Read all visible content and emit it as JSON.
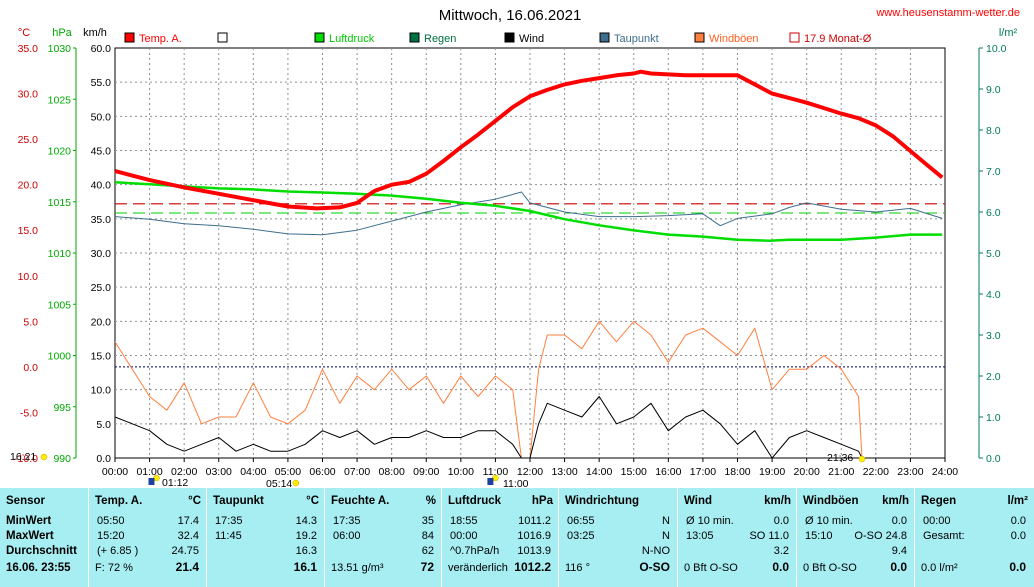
{
  "header": {
    "title": "Mittwoch, 16.06.2021",
    "site": "www.heusenstamm-wetter.de"
  },
  "colors": {
    "temp": "#ff0000",
    "pressure": "#00cc00",
    "rain": "#007040",
    "wind": "#000000",
    "dewpoint": "#3d6e8e",
    "gust": "#ff8040",
    "month_avg": "#cc0000",
    "axis_left": "#cc0000",
    "axis_press": "#00aa00",
    "axis_rain": "#007b5a",
    "table_bg": "#a6eef2"
  },
  "axes": {
    "temp_unit": "°C",
    "press_unit": "hPa",
    "wind_unit": "km/h",
    "rain_unit": "l/m²",
    "temp_ticks": [
      "35.0",
      "30.0",
      "25.0",
      "20.0",
      "15.0",
      "10.0",
      "5.0",
      "0.0",
      "-5.0",
      "-10.0"
    ],
    "press_ticks": [
      "1030",
      "1025",
      "1020",
      "1015",
      "1010",
      "1005",
      "1000",
      "995",
      "990"
    ],
    "wind_ticks": [
      "60.0",
      "55.0",
      "50.0",
      "45.0",
      "40.0",
      "35.0",
      "30.0",
      "25.0",
      "20.0",
      "15.0",
      "10.0",
      "5.0",
      "0.0"
    ],
    "rain_ticks": [
      "10.0",
      "9.0",
      "8.0",
      "7.0",
      "6.0",
      "5.0",
      "4.0",
      "3.0",
      "2.0",
      "1.0",
      "0.0"
    ],
    "time_ticks": [
      "00:00",
      "01:00",
      "02:00",
      "03:00",
      "04:00",
      "05:00",
      "06:00",
      "07:00",
      "08:00",
      "09:00",
      "10:00",
      "11:00",
      "12:00",
      "13:00",
      "14:00",
      "15:00",
      "16:00",
      "17:00",
      "18:00",
      "19:00",
      "20:00",
      "21:00",
      "22:00",
      "23:00",
      "24:00"
    ]
  },
  "legend": [
    {
      "label": "Temp. A.",
      "color": "#ff0000",
      "fill": true
    },
    {
      "label": "",
      "color": "#ffffff",
      "fill": true
    },
    {
      "label": "Luftdruck",
      "color": "#00dd00",
      "fill": true
    },
    {
      "label": "Regen",
      "color": "#007040",
      "fill": true
    },
    {
      "label": "Wind",
      "color": "#000000",
      "fill": true
    },
    {
      "label": "Taupunkt",
      "color": "#3d6e8e",
      "fill": true
    },
    {
      "label": "Windböen",
      "color": "#ff8040",
      "fill": true
    },
    {
      "label": "17.9 Monat-Ø",
      "color": "#cc0000",
      "fill": false
    }
  ],
  "events": {
    "sunrise": "05:14",
    "sunset": "21:36",
    "moonrise": "01:12",
    "moonset": "11:00",
    "prev_day": "16:21"
  },
  "chart_data": {
    "type": "line",
    "x_range": [
      "00:00",
      "24:00"
    ],
    "month_avg_temp": 17.9,
    "series": [
      {
        "name": "Temp. A.",
        "unit": "°C",
        "x_hours": [
          0,
          1,
          2,
          3,
          4,
          5,
          5.83,
          6.5,
          7,
          7.5,
          8,
          8.5,
          9,
          9.5,
          10,
          10.5,
          11,
          11.5,
          12,
          12.5,
          13,
          13.5,
          14,
          14.5,
          15,
          15.2,
          15.5,
          16,
          16.5,
          17,
          17.5,
          18,
          18.5,
          19,
          19.5,
          20,
          20.5,
          21,
          21.5,
          22,
          22.5,
          23,
          23.5,
          23.92
        ],
        "y": [
          21.5,
          20.5,
          19.7,
          19.0,
          18.3,
          17.6,
          17.4,
          17.5,
          18.0,
          19.3,
          20.0,
          20.3,
          21.2,
          22.6,
          24.1,
          25.5,
          27.0,
          28.5,
          29.7,
          30.4,
          31.0,
          31.4,
          31.7,
          32.0,
          32.2,
          32.4,
          32.2,
          32.1,
          32.0,
          32.0,
          32.0,
          32.0,
          31.0,
          30.0,
          29.5,
          29.0,
          28.4,
          27.8,
          27.3,
          26.5,
          25.3,
          23.7,
          22.1,
          20.8
        ]
      },
      {
        "name": "Luftdruck",
        "unit": "hPa",
        "x_hours": [
          0,
          1,
          2,
          3,
          4,
          5,
          6,
          6.92,
          8,
          9,
          10,
          11,
          12,
          13,
          14,
          15,
          16,
          17,
          18,
          18.92,
          19.5,
          20,
          21,
          22,
          23,
          23.92
        ],
        "y": [
          1016.9,
          1016.7,
          1016.5,
          1016.3,
          1016.2,
          1016.0,
          1015.9,
          1015.8,
          1015.6,
          1015.3,
          1014.9,
          1014.6,
          1014.1,
          1013.3,
          1012.7,
          1012.2,
          1011.8,
          1011.6,
          1011.3,
          1011.2,
          1011.3,
          1011.3,
          1011.3,
          1011.5,
          1011.8,
          1011.8
        ]
      },
      {
        "name": "Taupunkt",
        "unit": "°C",
        "x_hours": [
          0,
          1,
          2,
          3,
          4,
          5,
          6,
          7,
          8,
          9,
          10,
          11,
          11.75,
          12,
          13,
          14,
          15,
          16,
          17,
          17.5,
          18,
          19,
          19.5,
          20,
          21,
          22,
          23,
          23.92
        ],
        "y": [
          16.5,
          16.2,
          15.7,
          15.5,
          15.1,
          14.6,
          14.5,
          15.0,
          16.0,
          17.0,
          17.8,
          18.4,
          19.2,
          18.0,
          17.0,
          16.5,
          16.5,
          16.6,
          16.8,
          15.5,
          16.3,
          16.8,
          17.5,
          18.0,
          17.3,
          17.0,
          17.4,
          16.3
        ]
      },
      {
        "name": "Wind",
        "unit": "km/h",
        "x_hours": [
          0,
          0.5,
          1,
          1.5,
          2,
          2.5,
          3,
          3.5,
          4,
          4.5,
          5,
          5.5,
          6,
          6.5,
          7,
          7.5,
          8,
          8.5,
          9,
          9.5,
          10,
          10.5,
          11,
          11.5,
          11.75,
          12,
          12.25,
          12.5,
          13,
          13.5,
          14,
          14.5,
          15,
          15.5,
          16,
          16.5,
          17,
          17.5,
          18,
          18.5,
          19,
          19.5,
          20,
          20.5,
          21,
          21.5,
          21.6
        ],
        "y": [
          6,
          5,
          4,
          2,
          1,
          2,
          3,
          1,
          2,
          1,
          1,
          2,
          4,
          3,
          4,
          2,
          3,
          3,
          4,
          3,
          3,
          4,
          4,
          2,
          0,
          0,
          5,
          8,
          7,
          6,
          9,
          5,
          6,
          8,
          4,
          6,
          7,
          5,
          2,
          4,
          0,
          3,
          4,
          3,
          2,
          1,
          0
        ]
      },
      {
        "name": "Windböen",
        "unit": "km/h",
        "x_hours": [
          0,
          0.5,
          1,
          1.5,
          2,
          2.5,
          3,
          3.5,
          4,
          4.5,
          5,
          5.5,
          6,
          6.5,
          7,
          7.5,
          8,
          8.5,
          9,
          9.5,
          10,
          10.5,
          11,
          11.5,
          11.75,
          12,
          12.25,
          12.5,
          13,
          13.5,
          14,
          14.5,
          15,
          15.5,
          16,
          16.5,
          17,
          17.5,
          18,
          18.5,
          19,
          19.5,
          20,
          20.5,
          21,
          21.5,
          21.6
        ],
        "y": [
          17,
          13,
          9,
          7,
          11,
          5,
          6,
          6,
          11,
          6,
          5,
          7,
          13,
          8,
          12,
          10,
          13,
          10,
          12,
          8,
          12,
          9,
          12,
          10,
          0,
          0,
          13,
          18,
          18,
          16,
          20,
          17,
          20,
          18,
          14,
          18,
          19,
          17,
          15,
          19,
          10,
          13,
          13,
          15,
          13,
          9,
          0
        ]
      }
    ],
    "ylim_temp": [
      -10,
      35
    ],
    "ylim_press": [
      990,
      1030
    ],
    "ylim_wind": [
      0,
      60
    ],
    "ylim_rain": [
      0,
      10
    ]
  },
  "table": {
    "cols": [
      {
        "title": "Sensor",
        "unit": "",
        "rows": [
          "MinWert",
          "MaxWert",
          "Durchschnitt"
        ],
        "foot": "16.06. 23:55"
      },
      {
        "title": "Temp. A.",
        "unit": "°C",
        "rows": [
          [
            "05:50",
            "17.4"
          ],
          [
            "15:20",
            "32.4"
          ],
          [
            "(+ 6.85 )",
            "24.75"
          ]
        ],
        "foot": [
          "F: 72 %",
          "21.4"
        ]
      },
      {
        "title": "Taupunkt",
        "unit": "°C",
        "rows": [
          [
            "17:35",
            "14.3"
          ],
          [
            "11:45",
            "19.2"
          ],
          [
            "",
            "16.3"
          ]
        ],
        "foot": [
          "",
          "16.1"
        ]
      },
      {
        "title": "Feuchte A.",
        "unit": "%",
        "rows": [
          [
            "17:35",
            "35"
          ],
          [
            "06:00",
            "84"
          ],
          [
            "",
            "62"
          ]
        ],
        "foot": [
          "13.51 g/m³",
          "72"
        ]
      },
      {
        "title": "Luftdruck",
        "unit": "hPa",
        "rows": [
          [
            "18:55",
            "1011.2"
          ],
          [
            "00:00",
            "1016.9"
          ],
          [
            "^0.7hPa/h",
            "1013.9"
          ]
        ],
        "foot": [
          "veränderlich",
          "1012.2"
        ]
      },
      {
        "title": "Windrichtung",
        "unit": "",
        "rows": [
          [
            "06:55",
            "N"
          ],
          [
            "03:25",
            "N"
          ],
          [
            "",
            "N-NO"
          ]
        ],
        "foot": [
          "116 °",
          "O-SO"
        ]
      },
      {
        "title": "Wind",
        "unit": "km/h",
        "rows": [
          [
            "Ø 10 min.",
            "0.0"
          ],
          [
            "13:05",
            "SO 11.0"
          ],
          [
            "",
            "3.2"
          ]
        ],
        "foot": [
          "0 Bft O-SO",
          "0.0"
        ]
      },
      {
        "title": "Windböen",
        "unit": "km/h",
        "rows": [
          [
            "Ø 10 min.",
            "0.0"
          ],
          [
            "15:10",
            "O-SO 24.8"
          ],
          [
            "",
            "9.4"
          ]
        ],
        "foot": [
          "0 Bft O-SO",
          "0.0"
        ]
      },
      {
        "title": "Regen",
        "unit": "l/m²",
        "rows": [
          [
            "00:00",
            "0.0"
          ],
          [
            "Gesamt:",
            "0.0"
          ],
          [
            "",
            ""
          ]
        ],
        "foot": [
          "0.0 l/m²",
          "0.0"
        ]
      }
    ]
  }
}
